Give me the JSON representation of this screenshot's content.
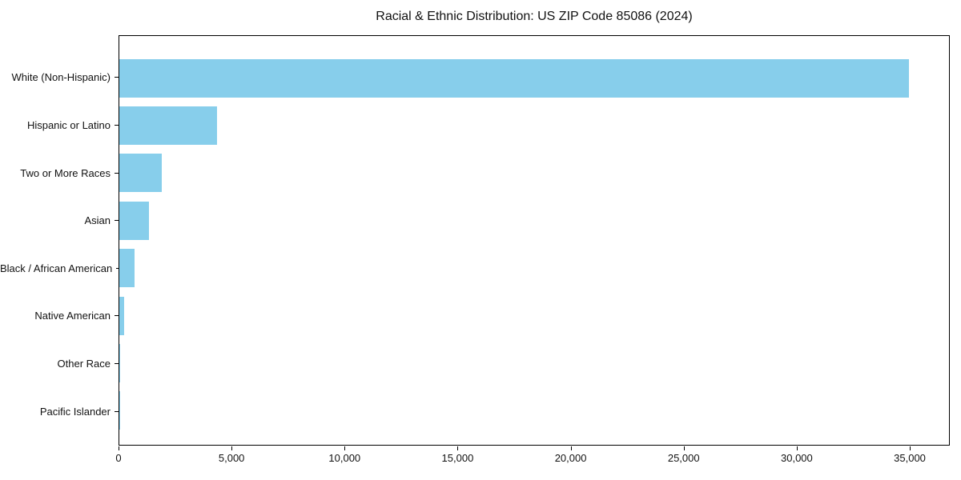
{
  "chart_data": {
    "type": "bar",
    "orientation": "horizontal",
    "title": "Racial & Ethnic Distribution: US ZIP Code 85086 (2024)",
    "categories": [
      "White (Non-Hispanic)",
      "Hispanic or Latino",
      "Two or More Races",
      "Asian",
      "Black / African American",
      "Native American",
      "Other Race",
      "Pacific Islander"
    ],
    "values": [
      35000,
      4340,
      1890,
      1320,
      670,
      210,
      40,
      10
    ],
    "xlabel": "",
    "ylabel": "",
    "xlim": [
      0,
      36770
    ],
    "x_ticks": [
      0,
      5000,
      10000,
      15000,
      20000,
      25000,
      30000,
      35000
    ],
    "x_tick_labels": [
      "0",
      "5,000",
      "10,000",
      "15,000",
      "20,000",
      "25,000",
      "30,000",
      "35,000"
    ],
    "bar_color": "#87CEEB",
    "background_color": "#FFFFFF",
    "spine_color": "#000000",
    "text_color": "#111111",
    "grid": false,
    "legend": "none"
  }
}
